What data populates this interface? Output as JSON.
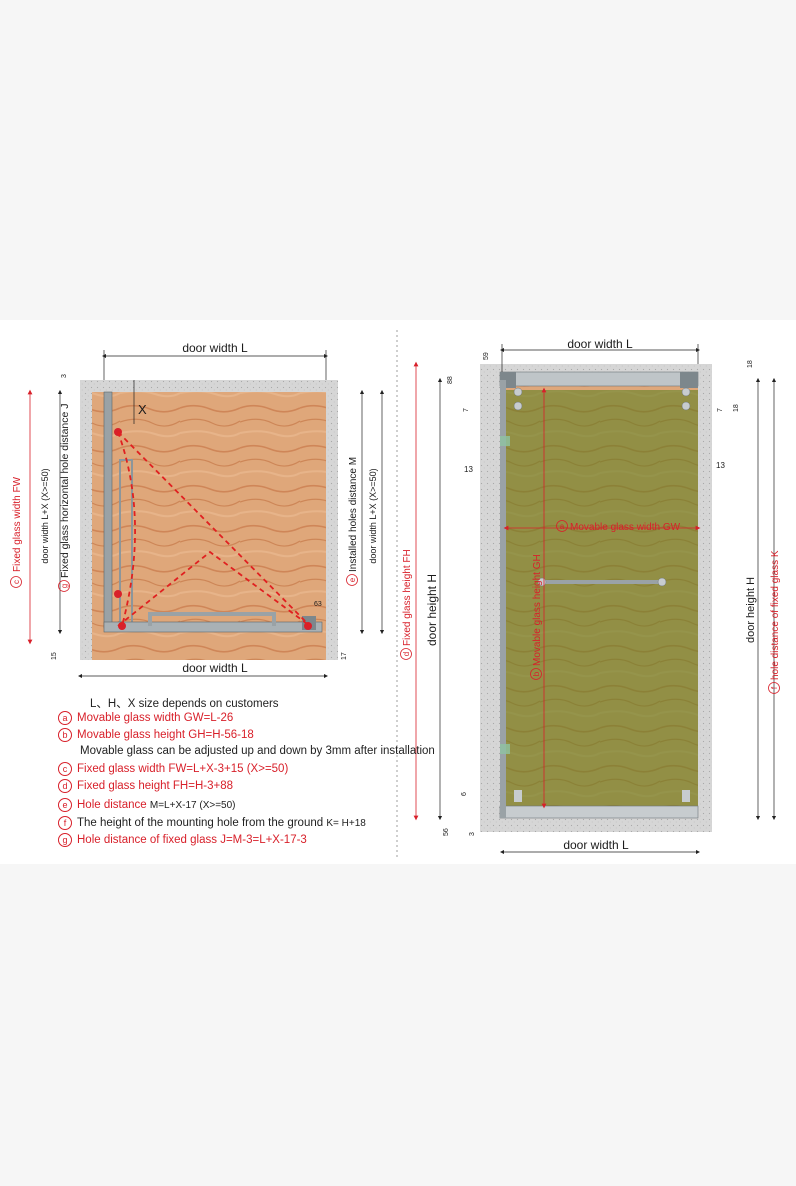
{
  "colors": {
    "accent_red": "#d8202a",
    "wood": "#dca579",
    "wall": "#d9d9d9",
    "glass_tint": "#6f8a2a"
  },
  "left_diagram": {
    "top_label": "door width L",
    "bottom_label": "door width L",
    "x_label": "X",
    "dim_3": "3",
    "dim_15": "15",
    "dim_17": "17",
    "dim_63": "63",
    "fixed_glass_width_circle": "c",
    "fixed_glass_width": "Fixed glass width  FW",
    "door_width_lx_left": "door width L+X (X>=50)",
    "g_circle": "g",
    "fixed_glass_horizontal": "Fixed glass horizontal hole distance  J",
    "e_circle": "e",
    "installed_holes": "Installed holes distance M",
    "door_width_lx_right": "door width L+X (X>=50)"
  },
  "right_diagram": {
    "top_label": "door width L",
    "bottom_label": "door width L",
    "dim_59": "59",
    "dim_88": "88",
    "dim_7_left": "7",
    "dim_18_top": "18",
    "dim_7_right": "7",
    "dim_18_right": "18",
    "dim_13_left": "13",
    "dim_13_right": "13",
    "dim_6": "6",
    "dim_56": "56",
    "dim_3": "3",
    "a_circle": "a",
    "movable_width": "Movable glass width  GW",
    "b_circle": "b",
    "movable_height": "Movable glass height GH",
    "d_circle": "d",
    "fixed_height": "Fixed glass height FH",
    "door_height_big": "door height  H",
    "door_height_small": "door height H",
    "f_circle": "f",
    "hole_distance": "hole distance of fixed glass K"
  },
  "legend": {
    "intro": "L、H、X size depends on customers",
    "items": [
      {
        "circle": "a",
        "label": "Movable glass width",
        "formula": "GW=L-26"
      },
      {
        "circle": "b",
        "label": "Movable glass height",
        "formula": "GH=H-56-18"
      },
      {
        "note": "Movable glass can be adjusted up and down by 3mm after installation"
      },
      {
        "circle": "c",
        "label": "Fixed glass width",
        "formula": "FW=L+X-3+15 (X>=50)"
      },
      {
        "circle": "d",
        "label": "Fixed glass height",
        "formula": "FH=H-3+88"
      },
      {
        "circle": "e",
        "label": "Hole distance",
        "formula": "M=L+X-17 (X>=50)"
      },
      {
        "circle": "f",
        "label": "The height of the mounting hole from the ground",
        "formula": "K= H+18"
      },
      {
        "circle": "g",
        "label": "Hole distance of fixed glass",
        "formula": "J=M-3=L+X-17-3"
      }
    ]
  }
}
